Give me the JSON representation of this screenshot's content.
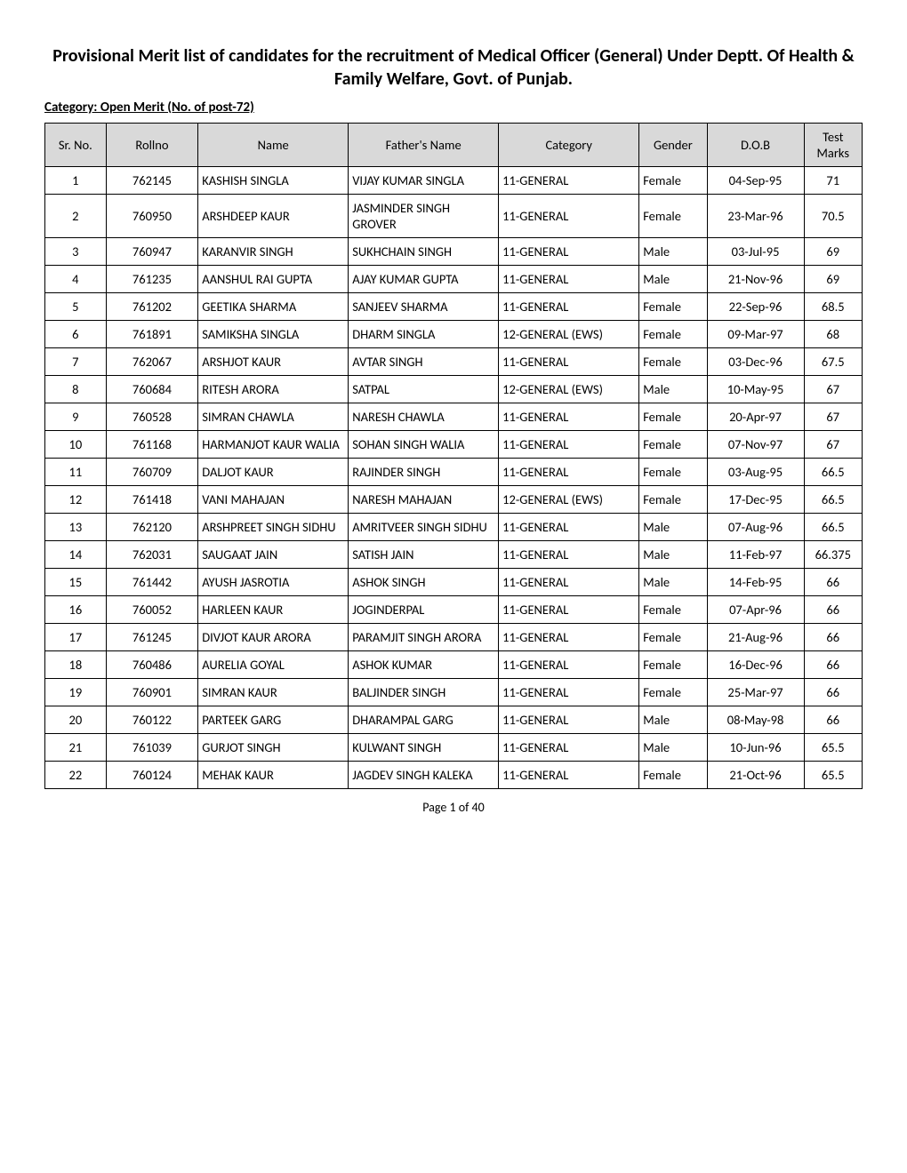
{
  "header": {
    "title": "Provisional Merit list of candidates for the recruitment of Medical Officer (General) Under Deptt. Of Health & Family Welfare, Govt. of Punjab.",
    "category_line": "Category: Open Merit  (No. of post-72)"
  },
  "table": {
    "columns": [
      "Sr. No.",
      "Rollno",
      "Name",
      "Father's Name",
      "Category",
      "Gender",
      "D.O.B",
      "Test Marks"
    ],
    "header_bg": "#d9d9d9",
    "border_color": "#000000",
    "rows": [
      {
        "sr": "1",
        "rollno": "762145",
        "name": "KASHISH SINGLA",
        "father": "VIJAY KUMAR SINGLA",
        "category": "11-GENERAL",
        "gender": "Female",
        "dob": "04-Sep-95",
        "marks": "71"
      },
      {
        "sr": "2",
        "rollno": "760950",
        "name": "ARSHDEEP KAUR",
        "father": "JASMINDER SINGH GROVER",
        "category": "11-GENERAL",
        "gender": "Female",
        "dob": "23-Mar-96",
        "marks": "70.5"
      },
      {
        "sr": "3",
        "rollno": "760947",
        "name": "KARANVIR SINGH",
        "father": "SUKHCHAIN SINGH",
        "category": "11-GENERAL",
        "gender": "Male",
        "dob": "03-Jul-95",
        "marks": "69"
      },
      {
        "sr": "4",
        "rollno": "761235",
        "name": "AANSHUL RAI GUPTA",
        "father": "AJAY KUMAR GUPTA",
        "category": "11-GENERAL",
        "gender": "Male",
        "dob": "21-Nov-96",
        "marks": "69"
      },
      {
        "sr": "5",
        "rollno": "761202",
        "name": "GEETIKA SHARMA",
        "father": "SANJEEV SHARMA",
        "category": "11-GENERAL",
        "gender": "Female",
        "dob": "22-Sep-96",
        "marks": "68.5"
      },
      {
        "sr": "6",
        "rollno": "761891",
        "name": "SAMIKSHA SINGLA",
        "father": "DHARM SINGLA",
        "category": "12-GENERAL (EWS)",
        "gender": "Female",
        "dob": "09-Mar-97",
        "marks": "68"
      },
      {
        "sr": "7",
        "rollno": "762067",
        "name": "ARSHJOT KAUR",
        "father": "AVTAR SINGH",
        "category": "11-GENERAL",
        "gender": "Female",
        "dob": "03-Dec-96",
        "marks": "67.5"
      },
      {
        "sr": "8",
        "rollno": "760684",
        "name": "RITESH ARORA",
        "father": "SATPAL",
        "category": "12-GENERAL (EWS)",
        "gender": "Male",
        "dob": "10-May-95",
        "marks": "67"
      },
      {
        "sr": "9",
        "rollno": "760528",
        "name": "SIMRAN CHAWLA",
        "father": "NARESH CHAWLA",
        "category": "11-GENERAL",
        "gender": "Female",
        "dob": "20-Apr-97",
        "marks": "67"
      },
      {
        "sr": "10",
        "rollno": "761168",
        "name": "HARMANJOT KAUR WALIA",
        "father": "SOHAN SINGH WALIA",
        "category": "11-GENERAL",
        "gender": "Female",
        "dob": "07-Nov-97",
        "marks": "67"
      },
      {
        "sr": "11",
        "rollno": "760709",
        "name": "DALJOT KAUR",
        "father": "RAJINDER SINGH",
        "category": "11-GENERAL",
        "gender": "Female",
        "dob": "03-Aug-95",
        "marks": "66.5"
      },
      {
        "sr": "12",
        "rollno": "761418",
        "name": "VANI MAHAJAN",
        "father": "NARESH MAHAJAN",
        "category": "12-GENERAL (EWS)",
        "gender": "Female",
        "dob": "17-Dec-95",
        "marks": "66.5"
      },
      {
        "sr": "13",
        "rollno": "762120",
        "name": "ARSHPREET SINGH SIDHU",
        "father": "AMRITVEER SINGH SIDHU",
        "category": "11-GENERAL",
        "gender": "Male",
        "dob": "07-Aug-96",
        "marks": "66.5"
      },
      {
        "sr": "14",
        "rollno": "762031",
        "name": "SAUGAAT JAIN",
        "father": "SATISH JAIN",
        "category": "11-GENERAL",
        "gender": "Male",
        "dob": "11-Feb-97",
        "marks": "66.375"
      },
      {
        "sr": "15",
        "rollno": "761442",
        "name": "AYUSH JASROTIA",
        "father": "ASHOK SINGH",
        "category": "11-GENERAL",
        "gender": "Male",
        "dob": "14-Feb-95",
        "marks": "66"
      },
      {
        "sr": "16",
        "rollno": "760052",
        "name": "HARLEEN KAUR",
        "father": "JOGINDERPAL",
        "category": "11-GENERAL",
        "gender": "Female",
        "dob": "07-Apr-96",
        "marks": "66"
      },
      {
        "sr": "17",
        "rollno": "761245",
        "name": "DIVJOT KAUR ARORA",
        "father": "PARAMJIT SINGH ARORA",
        "category": "11-GENERAL",
        "gender": "Female",
        "dob": "21-Aug-96",
        "marks": "66"
      },
      {
        "sr": "18",
        "rollno": "760486",
        "name": "AURELIA GOYAL",
        "father": "ASHOK KUMAR",
        "category": "11-GENERAL",
        "gender": "Female",
        "dob": "16-Dec-96",
        "marks": "66"
      },
      {
        "sr": "19",
        "rollno": "760901",
        "name": "SIMRAN KAUR",
        "father": "BALJINDER SINGH",
        "category": "11-GENERAL",
        "gender": "Female",
        "dob": "25-Mar-97",
        "marks": "66"
      },
      {
        "sr": "20",
        "rollno": "760122",
        "name": "PARTEEK GARG",
        "father": "DHARAMPAL GARG",
        "category": "11-GENERAL",
        "gender": "Male",
        "dob": "08-May-98",
        "marks": "66"
      },
      {
        "sr": "21",
        "rollno": "761039",
        "name": "GURJOT SINGH",
        "father": "KULWANT SINGH",
        "category": "11-GENERAL",
        "gender": "Male",
        "dob": "10-Jun-96",
        "marks": "65.5"
      },
      {
        "sr": "22",
        "rollno": "760124",
        "name": "MEHAK KAUR",
        "father": "JAGDEV SINGH KALEKA",
        "category": "11-GENERAL",
        "gender": "Female",
        "dob": "21-Oct-96",
        "marks": "65.5"
      }
    ]
  },
  "footer": {
    "page": "Page 1 of 40"
  }
}
